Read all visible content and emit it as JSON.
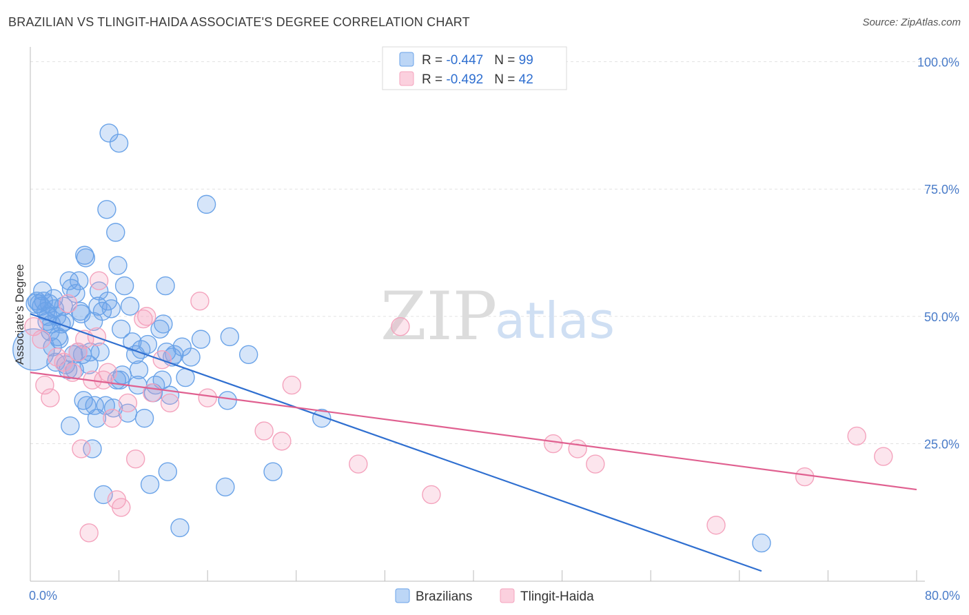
{
  "chart_data": {
    "type": "scatter",
    "title": "BRAZILIAN VS TLINGIT-HAIDA ASSOCIATE'S DEGREE CORRELATION CHART",
    "source": "Source: ZipAtlas.com",
    "ylabel": "Associate's Degree",
    "xlim": [
      0,
      80
    ],
    "ylim": [
      -2,
      104
    ],
    "x_tick_labels": [
      {
        "value": 0,
        "label": "0.0%"
      },
      {
        "value": 80,
        "label": "80.0%"
      }
    ],
    "y_tick_labels": [
      {
        "value": 100,
        "label": "100.0%"
      },
      {
        "value": 75,
        "label": "75.0%"
      },
      {
        "value": 50,
        "label": "50.0%"
      },
      {
        "value": 25,
        "label": "25.0%"
      }
    ],
    "legend": [
      {
        "r_label": "R = ",
        "r_value": "-0.447",
        "n_label": "N = ",
        "n_value": "99"
      },
      {
        "r_label": "R = ",
        "r_value": "-0.492",
        "n_label": "N = ",
        "n_value": "42"
      }
    ],
    "watermark": {
      "zip": "ZIP",
      "atlas": "atlas"
    },
    "series": [
      {
        "name": "Brazilians",
        "color": "#6aa3e8",
        "line_color": "#2f6fd0",
        "trend": {
          "x": [
            0,
            66
          ],
          "y": [
            50.5,
            0
          ]
        },
        "points": [
          [
            0.3,
            43.5
          ],
          [
            0.5,
            52.5
          ],
          [
            0.6,
            53
          ],
          [
            0.8,
            52.5
          ],
          [
            1.0,
            52
          ],
          [
            1.1,
            55
          ],
          [
            1.2,
            53
          ],
          [
            1.4,
            51
          ],
          [
            1.5,
            49
          ],
          [
            1.6,
            50
          ],
          [
            1.7,
            52.5
          ],
          [
            1.8,
            47
          ],
          [
            1.9,
            48.5
          ],
          [
            2.0,
            44
          ],
          [
            2.1,
            53.5
          ],
          [
            2.2,
            51.5
          ],
          [
            2.4,
            50
          ],
          [
            2.5,
            46
          ],
          [
            2.6,
            45.5
          ],
          [
            2.8,
            48.5
          ],
          [
            3.0,
            52
          ],
          [
            3.1,
            49
          ],
          [
            3.2,
            40.5
          ],
          [
            3.4,
            39.5
          ],
          [
            3.5,
            57
          ],
          [
            3.6,
            28.5
          ],
          [
            3.7,
            55.5
          ],
          [
            3.9,
            42.5
          ],
          [
            4.0,
            39.5
          ],
          [
            4.1,
            54.5
          ],
          [
            4.3,
            43
          ],
          [
            4.4,
            57
          ],
          [
            4.5,
            51
          ],
          [
            4.6,
            50.5
          ],
          [
            4.7,
            42.5
          ],
          [
            4.8,
            33.5
          ],
          [
            4.9,
            62
          ],
          [
            5.0,
            61.5
          ],
          [
            5.1,
            32.5
          ],
          [
            5.3,
            40.5
          ],
          [
            5.4,
            43
          ],
          [
            5.6,
            24
          ],
          [
            5.7,
            49
          ],
          [
            5.8,
            32.5
          ],
          [
            6.0,
            30
          ],
          [
            6.1,
            52
          ],
          [
            6.3,
            43
          ],
          [
            6.5,
            51
          ],
          [
            6.6,
            15
          ],
          [
            6.8,
            32.5
          ],
          [
            6.9,
            71
          ],
          [
            7.0,
            53
          ],
          [
            7.1,
            86
          ],
          [
            7.3,
            51.5
          ],
          [
            7.5,
            32
          ],
          [
            7.7,
            66.5
          ],
          [
            7.8,
            37.5
          ],
          [
            7.9,
            60
          ],
          [
            8.0,
            84
          ],
          [
            8.1,
            37.5
          ],
          [
            8.2,
            47.5
          ],
          [
            8.3,
            38.5
          ],
          [
            8.5,
            56
          ],
          [
            9.0,
            52
          ],
          [
            9.5,
            42.5
          ],
          [
            9.7,
            36.5
          ],
          [
            9.8,
            39.5
          ],
          [
            10.0,
            43.5
          ],
          [
            10.3,
            30
          ],
          [
            10.6,
            44.5
          ],
          [
            10.8,
            17
          ],
          [
            11.1,
            35
          ],
          [
            11.3,
            36.5
          ],
          [
            11.7,
            47.5
          ],
          [
            12.0,
            48.5
          ],
          [
            12.2,
            56
          ],
          [
            12.3,
            43
          ],
          [
            12.4,
            19.5
          ],
          [
            12.6,
            34.5
          ],
          [
            12.8,
            42
          ],
          [
            13.0,
            42.5
          ],
          [
            13.5,
            8.5
          ],
          [
            13.7,
            44
          ],
          [
            14.5,
            42
          ],
          [
            15.4,
            45.5
          ],
          [
            15.9,
            72
          ],
          [
            17.6,
            16.5
          ],
          [
            17.8,
            33.5
          ],
          [
            18.0,
            46
          ],
          [
            19.7,
            42.5
          ],
          [
            21.9,
            19.5
          ],
          [
            26.3,
            30
          ],
          [
            66.0,
            5.5
          ],
          [
            2.3,
            41
          ],
          [
            6.2,
            55
          ],
          [
            9.2,
            45
          ],
          [
            11.9,
            37.5
          ],
          [
            14.0,
            38
          ],
          [
            8.8,
            31
          ]
        ],
        "sizes": [
          30,
          14,
          13,
          13,
          13,
          13,
          13,
          13,
          13,
          13,
          13,
          13,
          13,
          13,
          13,
          13,
          13,
          13,
          13,
          13,
          13,
          13,
          13,
          13,
          13,
          13,
          13,
          13,
          13,
          13,
          13,
          13,
          13,
          13,
          13,
          13,
          13,
          13,
          13,
          13,
          13,
          13,
          13,
          13,
          13,
          13,
          13,
          13,
          13,
          13,
          13,
          13,
          13,
          13,
          13,
          13,
          13,
          13,
          13,
          13,
          13,
          13,
          13,
          13,
          13,
          13,
          13,
          13,
          13,
          13,
          13,
          13,
          13,
          13,
          13,
          13,
          13,
          13,
          13,
          13,
          13,
          13,
          13,
          13,
          13,
          13,
          13,
          13,
          13,
          13,
          13,
          13,
          13,
          13,
          13,
          13,
          13,
          13,
          13
        ]
      },
      {
        "name": "Tlingit-Haida",
        "color": "#f4a3bd",
        "line_color": "#e06090",
        "trend": {
          "x": [
            0,
            80
          ],
          "y": [
            39,
            16
          ]
        },
        "points": [
          [
            0.3,
            48
          ],
          [
            1.0,
            45.5
          ],
          [
            1.3,
            36.5
          ],
          [
            1.8,
            34
          ],
          [
            2.4,
            42
          ],
          [
            3.0,
            41
          ],
          [
            3.4,
            52.5
          ],
          [
            3.8,
            39
          ],
          [
            4.3,
            43
          ],
          [
            4.6,
            24
          ],
          [
            4.9,
            45.5
          ],
          [
            5.3,
            7.5
          ],
          [
            5.6,
            37.5
          ],
          [
            6.2,
            57
          ],
          [
            6.6,
            37.5
          ],
          [
            7.0,
            39
          ],
          [
            7.4,
            30
          ],
          [
            7.8,
            14
          ],
          [
            8.2,
            12.5
          ],
          [
            8.8,
            33
          ],
          [
            9.5,
            22
          ],
          [
            10.5,
            50
          ],
          [
            11.0,
            35
          ],
          [
            11.9,
            41.5
          ],
          [
            12.6,
            33
          ],
          [
            15.3,
            53
          ],
          [
            16.0,
            34
          ],
          [
            21.1,
            27.5
          ],
          [
            22.7,
            25.5
          ],
          [
            23.6,
            36.5
          ],
          [
            29.6,
            21
          ],
          [
            33.4,
            48
          ],
          [
            36.2,
            15
          ],
          [
            47.2,
            25
          ],
          [
            49.4,
            24
          ],
          [
            51.0,
            21
          ],
          [
            61.9,
            9
          ],
          [
            69.9,
            18.5
          ],
          [
            74.6,
            26.5
          ],
          [
            77.0,
            22.5
          ],
          [
            10.2,
            49.5
          ],
          [
            6.0,
            46
          ]
        ],
        "sizes": [
          13
        ]
      }
    ]
  }
}
